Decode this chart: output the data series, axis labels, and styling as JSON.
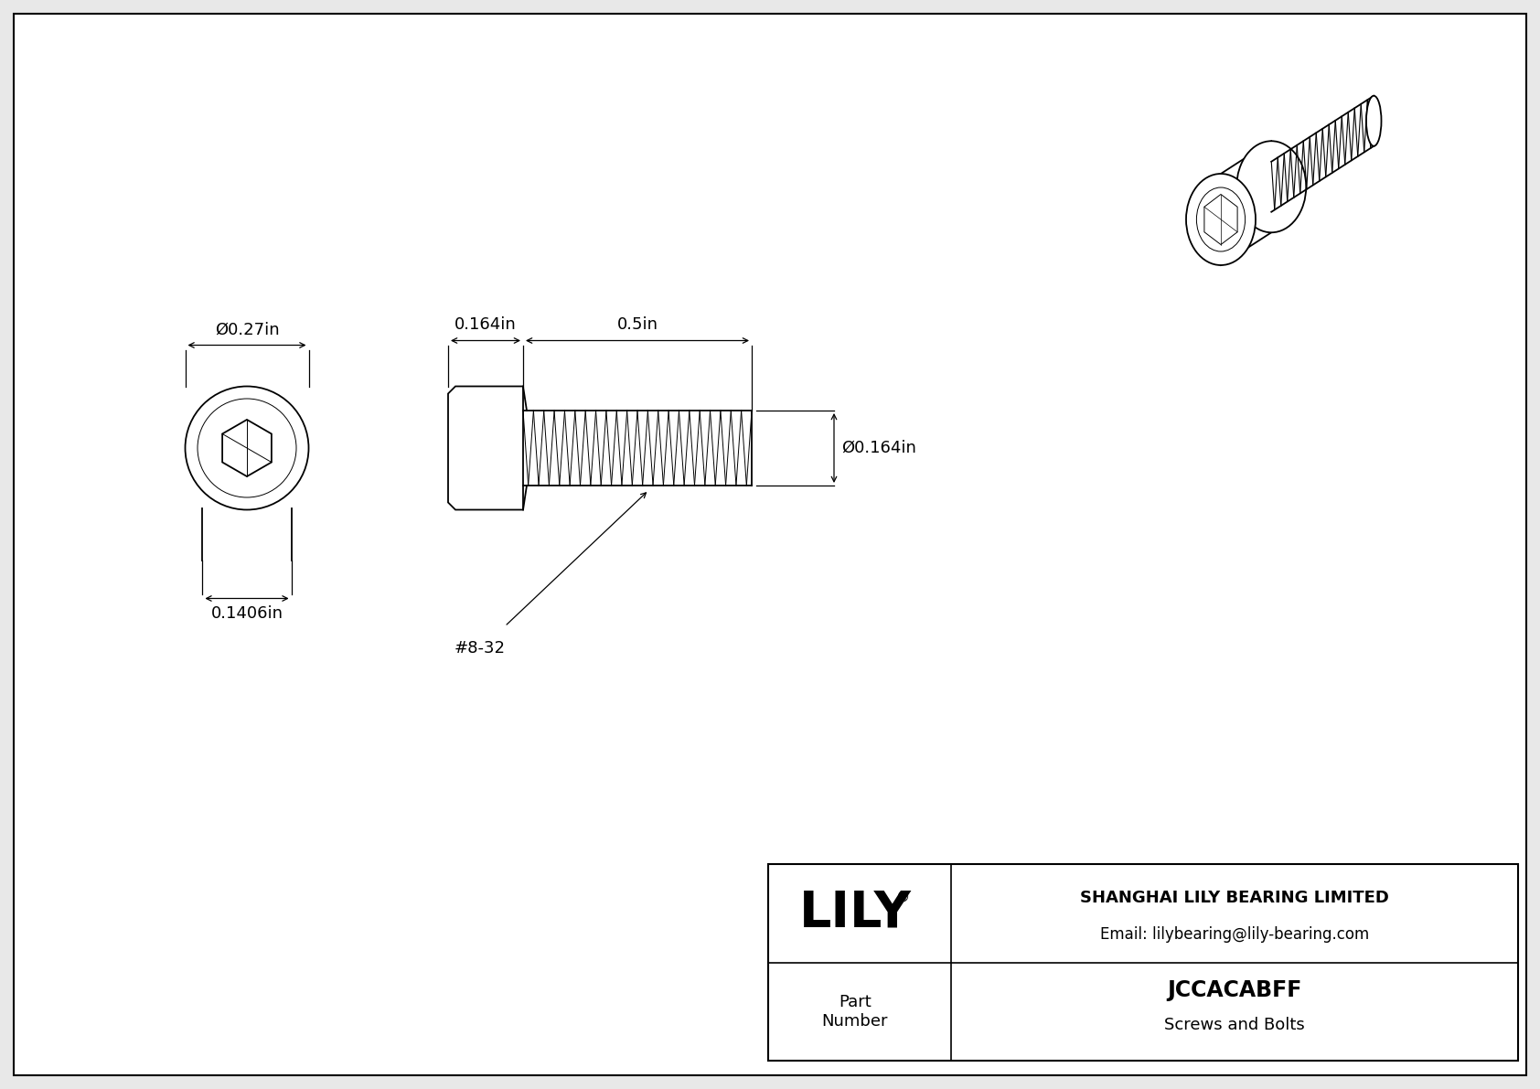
{
  "bg_color": "#e8e8e8",
  "inner_bg": "#ffffff",
  "line_color": "#000000",
  "title": "JCCACABFF",
  "subtitle": "Screws and Bolts",
  "company": "SHANGHAI LILY BEARING LIMITED",
  "email": "Email: lilybearing@lily-bearing.com",
  "part_label": "Part\nNumber",
  "logo_text": "LILY",
  "logo_sup": "®",
  "dim_head_diam": "Ø0.27in",
  "dim_socket_width": "0.1406in",
  "dim_shaft_len": "0.5in",
  "dim_head_len": "0.164in",
  "dim_shaft_diam": "Ø0.164in",
  "thread_label": "#8-32",
  "lw": 1.3,
  "lw_dim": 0.9,
  "lw_thin": 0.7,
  "dim_fontsize": 13,
  "note_fontsize": 13
}
